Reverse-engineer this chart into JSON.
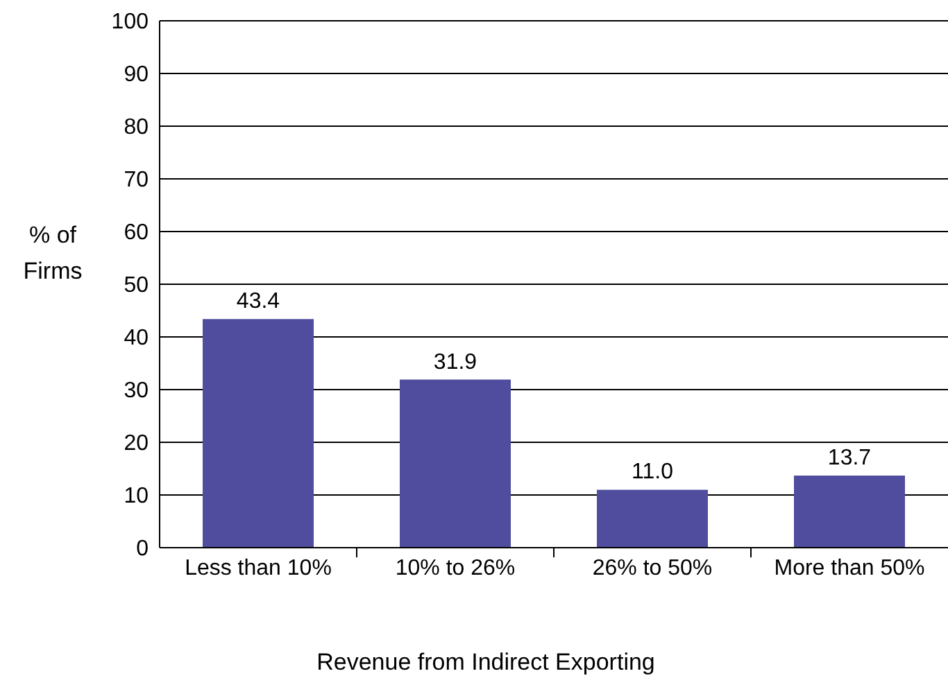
{
  "chart_data": {
    "type": "bar",
    "xlabel": "Revenue from Indirect Exporting",
    "ylabel": "% of Firms",
    "categories": [
      "Less than 10%",
      "10% to 26%",
      "26% to 50%",
      "More than 50%"
    ],
    "values": [
      43.4,
      31.9,
      11.0,
      13.7
    ],
    "value_labels": [
      "43.4",
      "31.9",
      "11.0",
      "13.7"
    ],
    "color": "#504c9e",
    "ylim": [
      0,
      100
    ],
    "yticks": [
      0,
      10,
      20,
      30,
      40,
      50,
      60,
      70,
      80,
      90,
      100
    ],
    "grid": "y"
  }
}
